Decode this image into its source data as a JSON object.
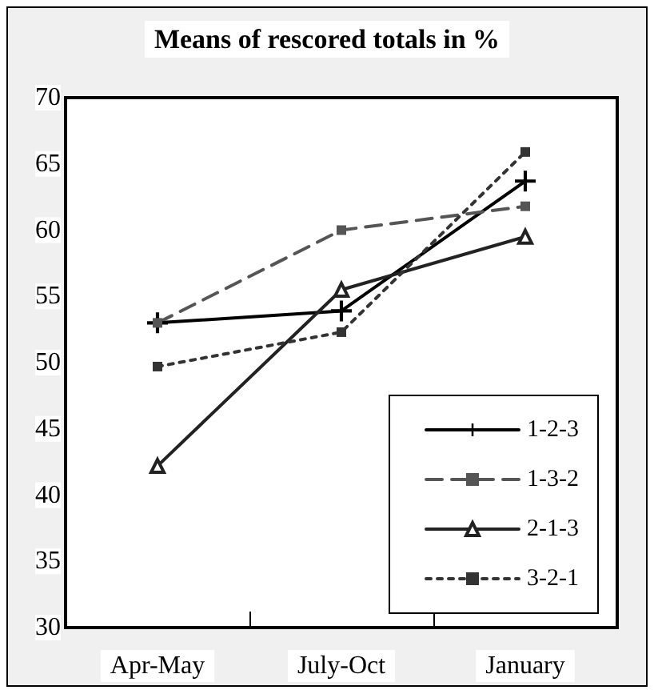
{
  "chart_data": {
    "type": "line",
    "title": "Means of rescored totals in %",
    "categories": [
      "Apr-May",
      "July-Oct",
      "January"
    ],
    "series": [
      {
        "name": "1-2-3",
        "color": "#000000",
        "values": [
          53,
          53.9,
          63.7
        ],
        "marker": "cross",
        "line_style": "solid"
      },
      {
        "name": "1-3-2",
        "color": "#555555",
        "values": [
          53,
          60,
          61.8
        ],
        "marker": "square",
        "line_style": "dashed"
      },
      {
        "name": "2-1-3",
        "color": "#222222",
        "values": [
          42.2,
          55.5,
          59.5
        ],
        "marker": "triangle",
        "line_style": "solid"
      },
      {
        "name": "3-2-1",
        "color": "#333333",
        "values": [
          49.7,
          52.3,
          65.9
        ],
        "marker": "square",
        "line_style": "dotted"
      }
    ],
    "ylim": [
      30,
      70
    ],
    "yticks": [
      30,
      35,
      40,
      45,
      50,
      55,
      60,
      65,
      70
    ],
    "grid": false,
    "legend": "bottom right"
  }
}
